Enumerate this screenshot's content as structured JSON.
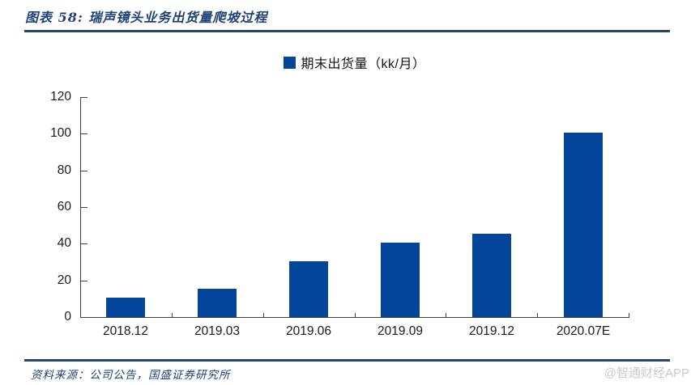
{
  "header": {
    "title": "图表 58: 瑞声镜头业务出货量爬坡过程"
  },
  "legend": {
    "label": "期末出货量（kk/月）"
  },
  "footer": {
    "source": "资料来源：公司公告，国盛证券研究所",
    "watermark": "@智通财经APP"
  },
  "colors": {
    "bar": "#04459c",
    "navy_text": "#1f4178",
    "rule": "#23456e",
    "axis": "#404040",
    "tick_label": "#1a1a1a",
    "watermark": "#c9c9c9"
  },
  "chart_data": {
    "type": "bar",
    "title": "图表 58: 瑞声镜头业务出货量爬坡过程",
    "categories": [
      "2018.12",
      "2019.03",
      "2019.06",
      "2019.09",
      "2019.12",
      "2020.07E"
    ],
    "values": [
      10.5,
      15.5,
      30.5,
      40.5,
      45.5,
      100.5
    ],
    "series_name": "期末出货量（kk/月）",
    "xlabel": "",
    "ylabel": "",
    "ylim": [
      0,
      120
    ],
    "yticks": [
      0,
      20,
      40,
      60,
      80,
      100,
      120
    ],
    "grid": false,
    "legend_position": "top-center",
    "bar_color": "#04459c"
  }
}
